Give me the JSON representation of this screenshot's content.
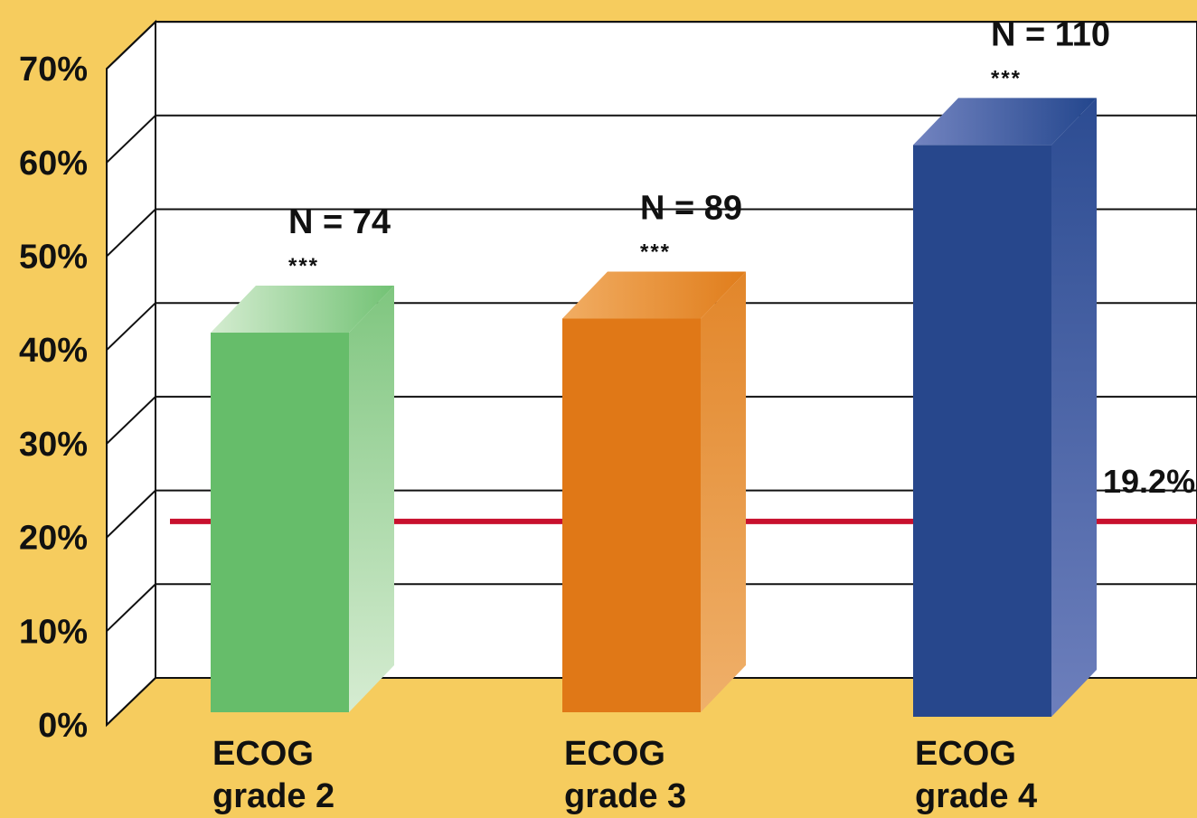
{
  "chart_data": {
    "type": "bar",
    "title": "",
    "xlabel": "",
    "ylabel": "",
    "ylim": [
      0,
      70
    ],
    "yticks": [
      0,
      10,
      20,
      30,
      40,
      50,
      60,
      70
    ],
    "ytick_labels": [
      "0%",
      "10%",
      "20%",
      "30%",
      "40%",
      "50%",
      "60%",
      "70%"
    ],
    "grid": true,
    "categories": [
      {
        "line1": "ECOG",
        "line2": "grade 2"
      },
      {
        "line1": "ECOG",
        "line2": "grade 3"
      },
      {
        "line1": "ECOG",
        "line2": "grade 4"
      }
    ],
    "values": [
      40.5,
      42.0,
      61.0
    ],
    "n_labels": [
      "N = 74",
      "N = 89",
      "N = 110"
    ],
    "significance": [
      "***",
      "***",
      "***"
    ],
    "colors": [
      "#66bd6a",
      "#e07817",
      "#27478c"
    ],
    "reference_line": {
      "value": 19.2,
      "label": "19.2%",
      "color": "#c8102e"
    },
    "background_color": "#f6cc5e"
  }
}
